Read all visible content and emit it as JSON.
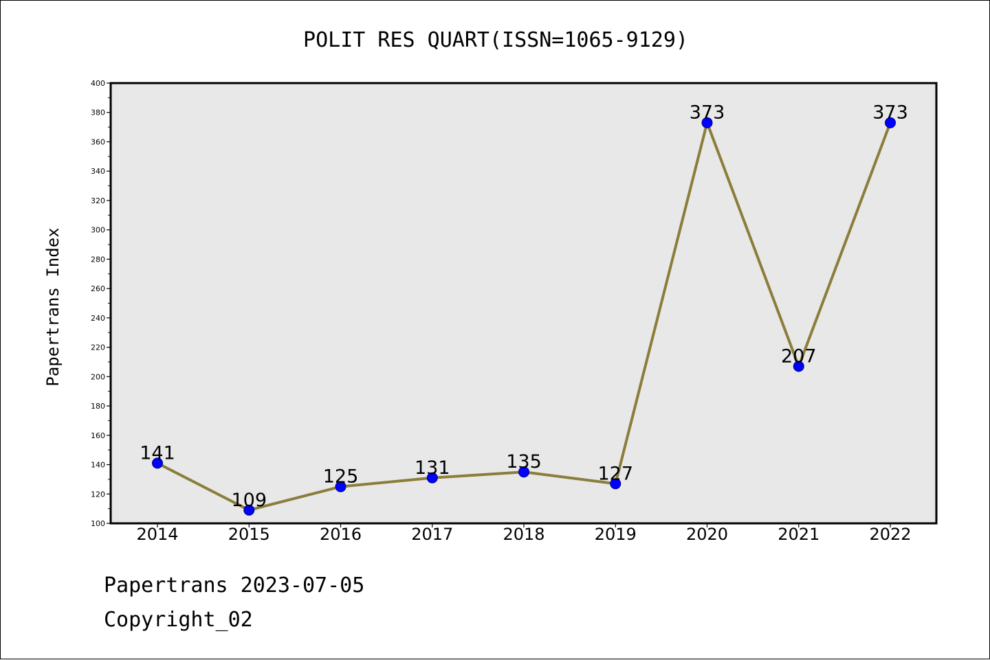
{
  "footer": {
    "source": "Papertrans 2023-07-05",
    "copyright": "Copyright_02"
  },
  "colors": {
    "plot_background": "#e8e8e8",
    "line": "#8b7d3a",
    "marker": "#0000ff",
    "marker_edge": "#000080"
  },
  "chart_data": {
    "type": "line",
    "title": "POLIT RES QUART(ISSN=1065-9129)",
    "xlabel": "",
    "ylabel": "Papertrans Index",
    "categories": [
      "2014",
      "2015",
      "2016",
      "2017",
      "2018",
      "2019",
      "2020",
      "2021",
      "2022"
    ],
    "series": [
      {
        "values": [
          141,
          109,
          125,
          131,
          135,
          127,
          373,
          207,
          373
        ]
      }
    ],
    "data_labels": [
      "141",
      "109",
      "125",
      "131",
      "135",
      "127",
      "373",
      "207",
      "373"
    ],
    "ylim": [
      100,
      400
    ],
    "yticks": [
      "100",
      "120",
      "140",
      "160",
      "180",
      "200",
      "220",
      "240",
      "260",
      "280",
      "300",
      "320",
      "340",
      "360",
      "380",
      "400"
    ],
    "grid": false,
    "legend": "none"
  }
}
